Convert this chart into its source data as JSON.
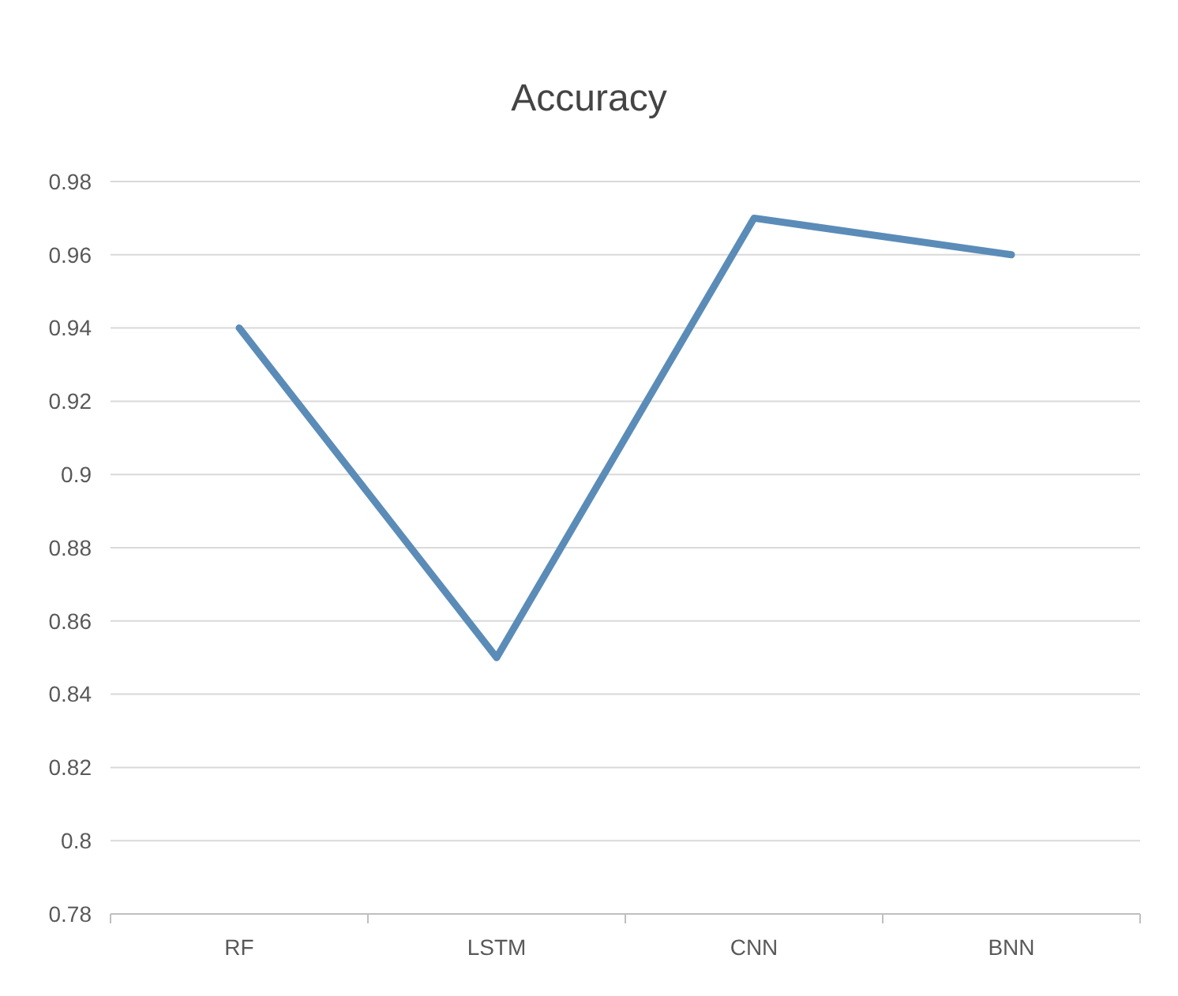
{
  "chart_data": {
    "type": "line",
    "title": "Accuracy",
    "categories": [
      "RF",
      "LSTM",
      "CNN",
      "BNN"
    ],
    "series": [
      {
        "color": "#5b8cb8",
        "values": [
          0.94,
          0.85,
          0.97,
          0.96
        ]
      }
    ],
    "ylim": [
      0.78,
      0.98
    ],
    "yticks": [
      0.78,
      0.8,
      0.82,
      0.84,
      0.86,
      0.88,
      0.9,
      0.92,
      0.94,
      0.96,
      0.98
    ],
    "grid": "y",
    "marker": "none",
    "line_style": "solid"
  }
}
